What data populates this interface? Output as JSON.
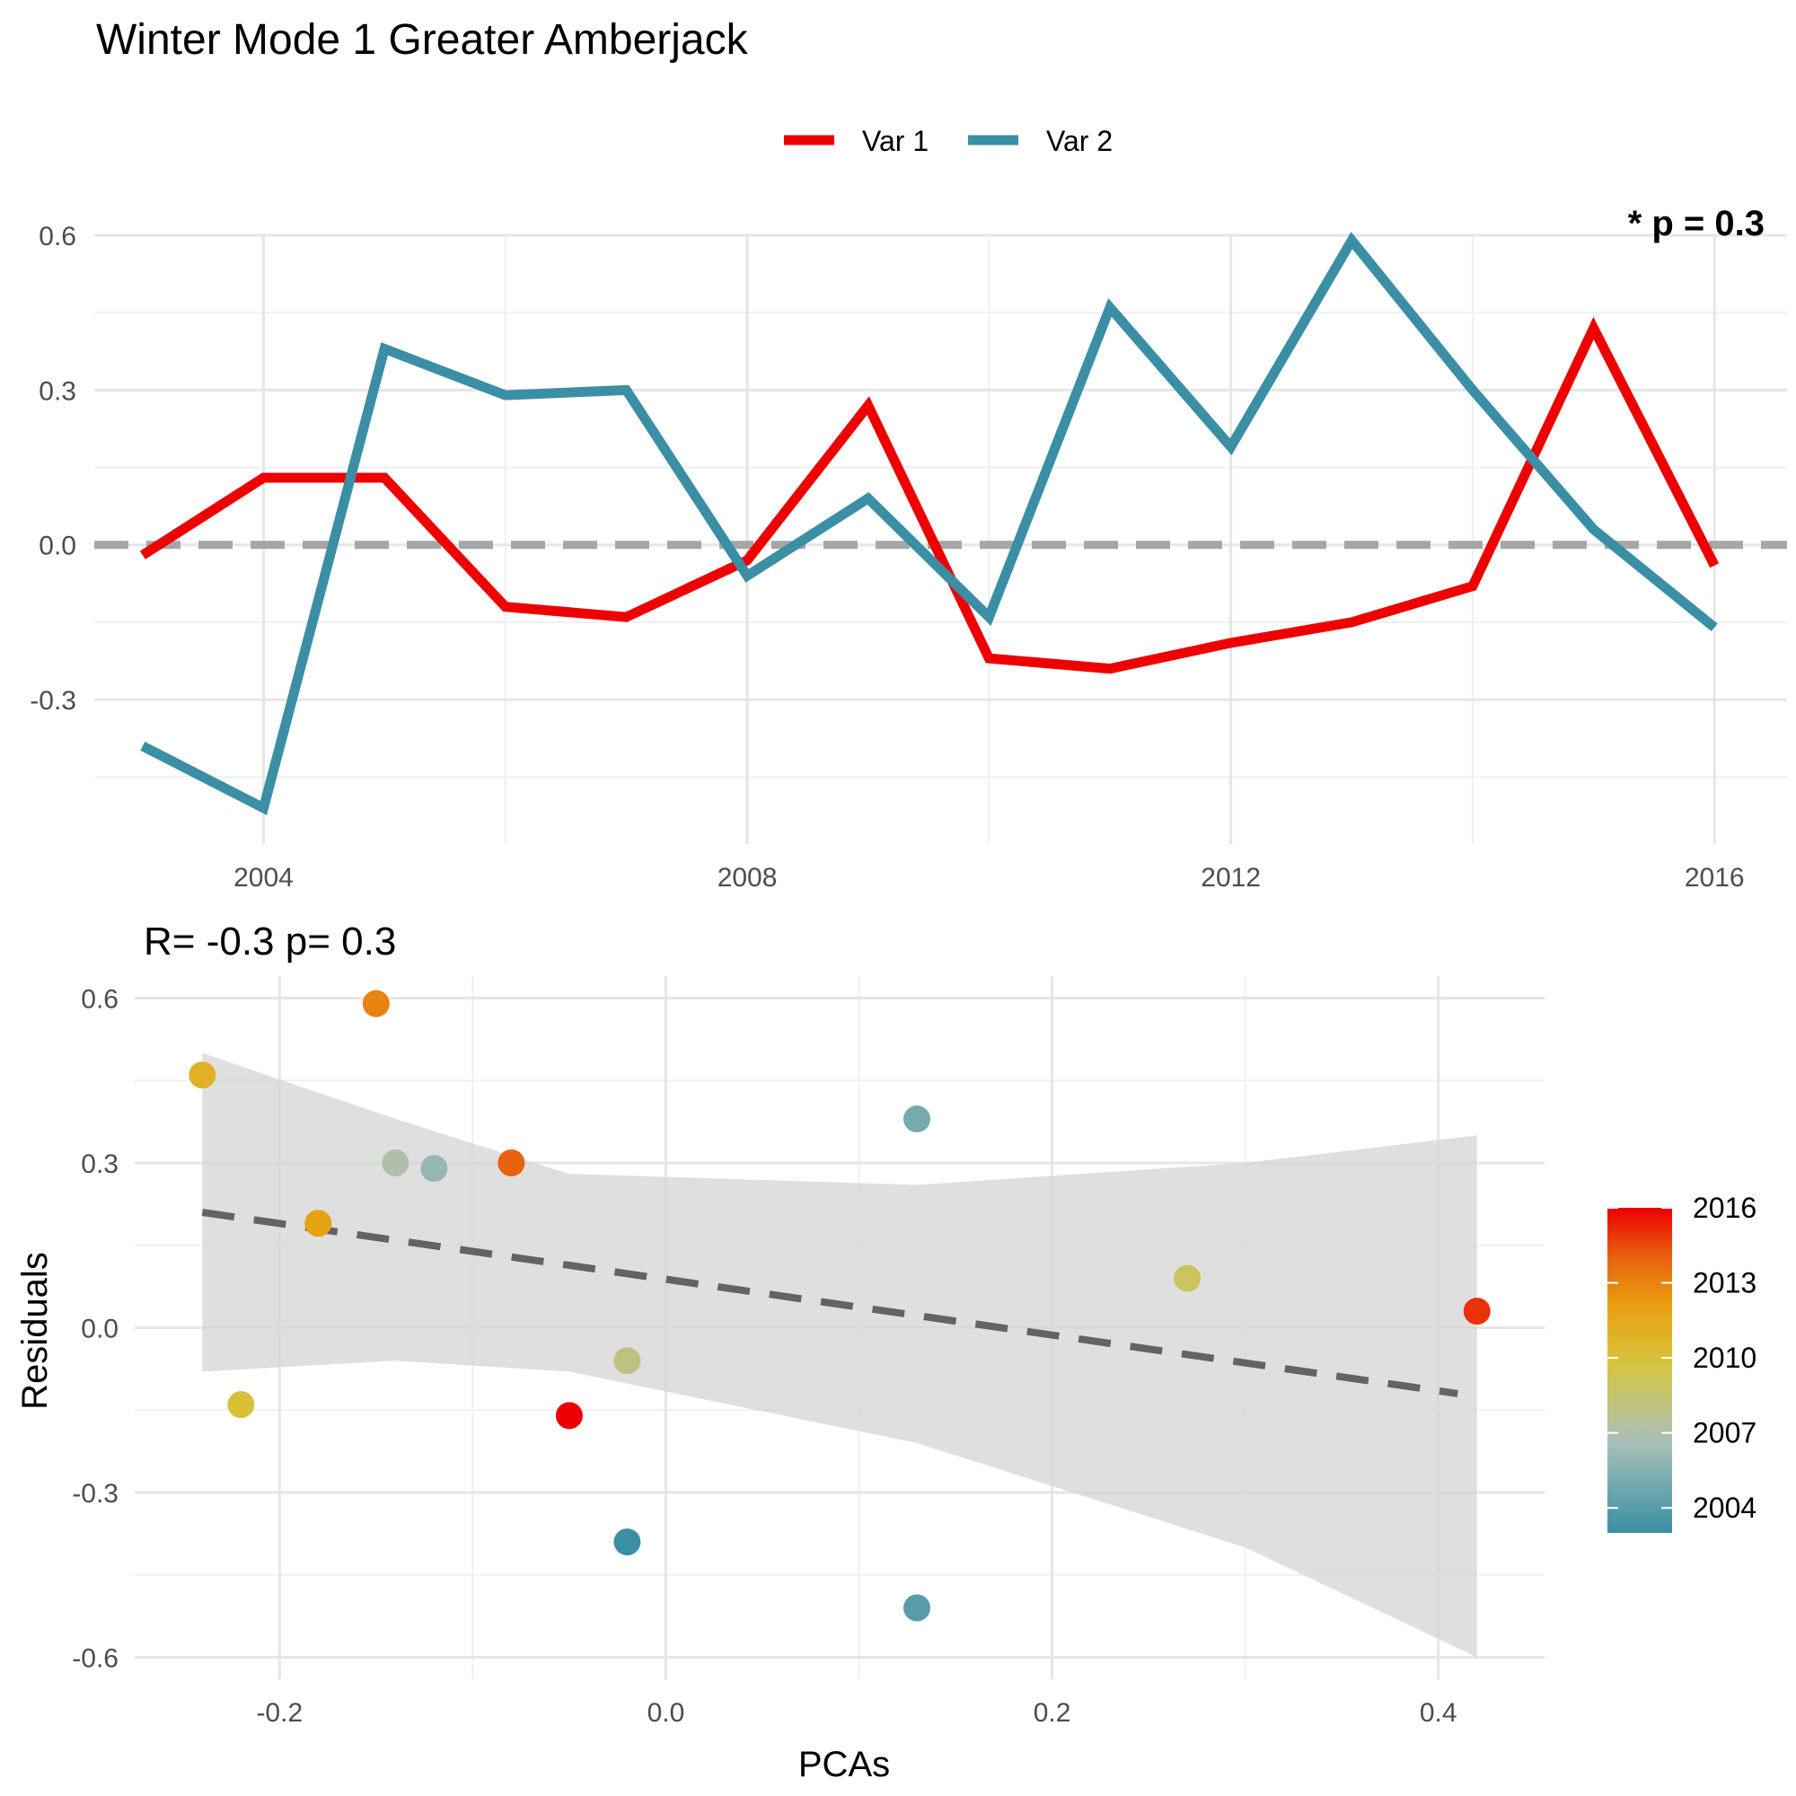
{
  "chart_data": [
    {
      "type": "line",
      "title": "Winter Mode 1 Greater Amberjack",
      "annotation": "* p = 0.3",
      "x": [
        2003,
        2004,
        2005,
        2006,
        2007,
        2008,
        2009,
        2010,
        2011,
        2012,
        2013,
        2014,
        2015,
        2016
      ],
      "series": [
        {
          "name": "Var 1",
          "color": "#ee0000",
          "values": [
            -0.02,
            0.13,
            0.13,
            -0.12,
            -0.14,
            -0.03,
            0.27,
            -0.22,
            -0.24,
            -0.19,
            -0.15,
            -0.08,
            0.42,
            -0.04
          ]
        },
        {
          "name": "Var 2",
          "color": "#3a8fa5",
          "values": [
            -0.39,
            -0.51,
            0.38,
            0.29,
            0.3,
            -0.06,
            0.09,
            -0.14,
            0.46,
            0.19,
            0.59,
            0.3,
            0.03,
            -0.16
          ]
        }
      ],
      "reference_line": 0,
      "xticks": [
        "2004",
        "2008",
        "2012",
        "2016"
      ],
      "yticks": [
        "-0.3",
        "0.0",
        "0.3",
        "0.6"
      ],
      "ylim": [
        -0.58,
        0.6
      ],
      "xlim": [
        2002.6,
        2016.6
      ],
      "grid": true,
      "legend_position": "top"
    },
    {
      "type": "scatter",
      "title": "R= -0.3  p= 0.3",
      "xlabel": "PCAs",
      "ylabel": "Residuals",
      "points": [
        {
          "x": -0.02,
          "y": -0.39,
          "year": 2003
        },
        {
          "x": 0.13,
          "y": -0.51,
          "year": 2004
        },
        {
          "x": 0.13,
          "y": 0.38,
          "year": 2005
        },
        {
          "x": -0.12,
          "y": 0.29,
          "year": 2006
        },
        {
          "x": -0.14,
          "y": 0.3,
          "year": 2007
        },
        {
          "x": -0.02,
          "y": -0.06,
          "year": 2008
        },
        {
          "x": 0.27,
          "y": 0.09,
          "year": 2009
        },
        {
          "x": -0.22,
          "y": -0.14,
          "year": 2010
        },
        {
          "x": -0.24,
          "y": 0.46,
          "year": 2011
        },
        {
          "x": -0.18,
          "y": 0.19,
          "year": 2012
        },
        {
          "x": -0.15,
          "y": 0.59,
          "year": 2013
        },
        {
          "x": -0.08,
          "y": 0.3,
          "year": 2014
        },
        {
          "x": 0.42,
          "y": 0.03,
          "year": 2015
        },
        {
          "x": -0.05,
          "y": -0.16,
          "year": 2016
        }
      ],
      "fit_line": {
        "x": [
          -0.24,
          0.41
        ],
        "y": [
          0.21,
          -0.12
        ]
      },
      "confidence_band": {
        "x": [
          -0.24,
          -0.14,
          -0.05,
          0.13,
          0.3,
          0.42
        ],
        "upper": [
          0.5,
          0.38,
          0.28,
          0.26,
          0.3,
          0.35
        ],
        "lower": [
          -0.08,
          -0.06,
          -0.08,
          -0.21,
          -0.4,
          -0.6
        ]
      },
      "xticks": [
        "-0.2",
        "0.0",
        "0.2",
        "0.4"
      ],
      "yticks": [
        "-0.6",
        "-0.3",
        "0.0",
        "0.3",
        "0.6"
      ],
      "xlim": [
        -0.275,
        0.455
      ],
      "ylim": [
        -0.64,
        0.64
      ],
      "colorbar": {
        "ticks": [
          "2004",
          "2007",
          "2010",
          "2013",
          "2016"
        ],
        "range": [
          2003,
          2016
        ],
        "stops": [
          "#3a8fa5",
          "#a9c0b8",
          "#d6c43e",
          "#e8a010",
          "#e86010",
          "#ee0000"
        ]
      },
      "grid": true
    }
  ]
}
